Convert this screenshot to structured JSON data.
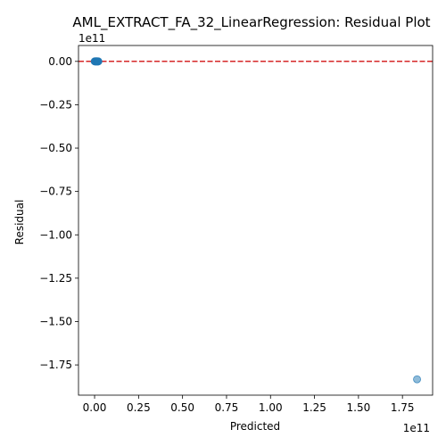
{
  "chart_data": {
    "type": "scatter",
    "title": "AML_EXTRACT_FA_32_LinearRegression: Residual Plot",
    "xlabel": "Predicted",
    "ylabel": "Residual",
    "x_offset_label": "1e11",
    "y_offset_label": "1e11",
    "x_scale": 100000000000.0,
    "y_scale": 100000000000.0,
    "xlim": [
      -0.0915,
      1.9215
    ],
    "ylim": [
      -1.9244,
      0.0916
    ],
    "x_ticks": [
      0.0,
      0.25,
      0.5,
      0.75,
      1.0,
      1.25,
      1.5,
      1.75
    ],
    "x_tick_labels": [
      "0.00",
      "0.25",
      "0.50",
      "0.75",
      "1.00",
      "1.25",
      "1.50",
      "1.75"
    ],
    "y_ticks": [
      0.0,
      -0.25,
      -0.5,
      -0.75,
      -1.0,
      -1.25,
      -1.5,
      -1.75
    ],
    "y_tick_labels": [
      "0.00",
      "−0.25",
      "−0.50",
      "−0.75",
      "−1.00",
      "−1.25",
      "−1.50",
      "−1.75"
    ],
    "points": [
      {
        "x": 0.0,
        "y": 0.0
      },
      {
        "x": 0.002,
        "y": 0.0
      },
      {
        "x": 0.004,
        "y": 0.0
      },
      {
        "x": 0.006,
        "y": 0.001
      },
      {
        "x": 0.008,
        "y": -0.001
      },
      {
        "x": 0.01,
        "y": 0.0
      },
      {
        "x": 0.012,
        "y": 0.0
      },
      {
        "x": 0.014,
        "y": 0.001
      },
      {
        "x": 0.016,
        "y": 0.0
      },
      {
        "x": 0.018,
        "y": -0.001
      },
      {
        "x": 0.02,
        "y": 0.0
      },
      {
        "x": 0.022,
        "y": 0.0
      },
      {
        "x": 1.833,
        "y": -1.833
      }
    ],
    "reference_line": {
      "y": 0.0,
      "color": "#d62728",
      "style": "dashed"
    },
    "point_color": "#1f77b4",
    "point_alpha": 0.5,
    "grid": false
  }
}
